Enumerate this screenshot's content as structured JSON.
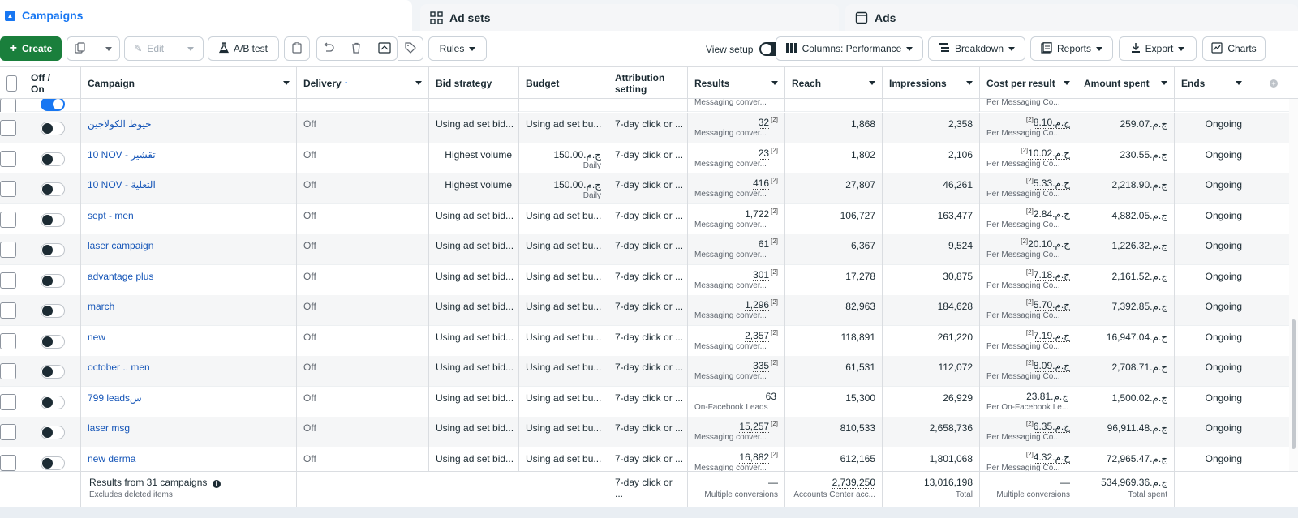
{
  "tabs": {
    "campaigns": "Campaigns",
    "adsets": "Ad sets",
    "ads": "Ads"
  },
  "toolbar": {
    "create": "Create",
    "edit": "Edit",
    "ab_test": "A/B test",
    "rules": "Rules",
    "view_setup": "View setup",
    "columns": "Columns: Performance",
    "breakdown": "Breakdown",
    "reports": "Reports",
    "export": "Export",
    "charts": "Charts"
  },
  "headers": {
    "off_on": "Off / On",
    "campaign": "Campaign",
    "delivery": "Delivery",
    "bid_strategy": "Bid strategy",
    "budget": "Budget",
    "attribution": "Attribution setting",
    "results": "Results",
    "reach": "Reach",
    "impressions": "Impressions",
    "cost_per_result": "Cost per result",
    "amount_spent": "Amount spent",
    "ends": "Ends"
  },
  "partial_row": {
    "results_sub": "Messaging conver...",
    "cpr_sub": "Per Messaging Co..."
  },
  "rows": [
    {
      "name": "خيوط الكولاجين",
      "delivery": "Off",
      "bid": "Using ad set bid...",
      "budget": "Using ad set bu...",
      "budget_sub": "",
      "attribution": "7-day click or ...",
      "results": "32",
      "results_sup": "[2]",
      "results_sub": "Messaging conver...",
      "reach": "1,868",
      "impressions": "2,358",
      "cpr": "ج.م.8.10",
      "cpr_sup": "[2]",
      "cpr_sub": "Per Messaging Co...",
      "spent": "ج.م.259.07",
      "ends": "Ongoing"
    },
    {
      "name": "10 NOV - تقشير",
      "delivery": "Off",
      "bid": "Highest volume",
      "budget": "ج.م.150.00",
      "budget_sub": "Daily",
      "attribution": "7-day click or ...",
      "results": "23",
      "results_sup": "[2]",
      "results_sub": "Messaging conver...",
      "reach": "1,802",
      "impressions": "2,106",
      "cpr": "ج.م.10.02",
      "cpr_sup": "[2]",
      "cpr_sub": "Per Messaging Co...",
      "spent": "ج.م.230.55",
      "ends": "Ongoing"
    },
    {
      "name": "10 NOV - التعلية",
      "delivery": "Off",
      "bid": "Highest volume",
      "budget": "ج.م.150.00",
      "budget_sub": "Daily",
      "attribution": "7-day click or ...",
      "results": "416",
      "results_sup": "[2]",
      "results_sub": "Messaging conver...",
      "reach": "27,807",
      "impressions": "46,261",
      "cpr": "ج.م.5.33",
      "cpr_sup": "[2]",
      "cpr_sub": "Per Messaging Co...",
      "spent": "ج.م.2,218.90",
      "ends": "Ongoing"
    },
    {
      "name": "sept - men",
      "delivery": "Off",
      "bid": "Using ad set bid...",
      "budget": "Using ad set bu...",
      "budget_sub": "",
      "attribution": "7-day click or ...",
      "results": "1,722",
      "results_sup": "[2]",
      "results_sub": "Messaging conver...",
      "reach": "106,727",
      "impressions": "163,477",
      "cpr": "ج.م.2.84",
      "cpr_sup": "[2]",
      "cpr_sub": "Per Messaging Co...",
      "spent": "ج.م.4,882.05",
      "ends": "Ongoing"
    },
    {
      "name": "laser campaign",
      "delivery": "Off",
      "bid": "Using ad set bid...",
      "budget": "Using ad set bu...",
      "budget_sub": "",
      "attribution": "7-day click or ...",
      "results": "61",
      "results_sup": "[2]",
      "results_sub": "Messaging conver...",
      "reach": "6,367",
      "impressions": "9,524",
      "cpr": "ج.م.20.10",
      "cpr_sup": "[2]",
      "cpr_sub": "Per Messaging Co...",
      "spent": "ج.م.1,226.32",
      "ends": "Ongoing"
    },
    {
      "name": "advantage plus",
      "delivery": "Off",
      "bid": "Using ad set bid...",
      "budget": "Using ad set bu...",
      "budget_sub": "",
      "attribution": "7-day click or ...",
      "results": "301",
      "results_sup": "[2]",
      "results_sub": "Messaging conver...",
      "reach": "17,278",
      "impressions": "30,875",
      "cpr": "ج.م.7.18",
      "cpr_sup": "[2]",
      "cpr_sub": "Per Messaging Co...",
      "spent": "ج.م.2,161.52",
      "ends": "Ongoing"
    },
    {
      "name": "march",
      "delivery": "Off",
      "bid": "Using ad set bid...",
      "budget": "Using ad set bu...",
      "budget_sub": "",
      "attribution": "7-day click or ...",
      "results": "1,296",
      "results_sup": "[2]",
      "results_sub": "Messaging conver...",
      "reach": "82,963",
      "impressions": "184,628",
      "cpr": "ج.م.5.70",
      "cpr_sup": "[2]",
      "cpr_sub": "Per Messaging Co...",
      "spent": "ج.م.7,392.85",
      "ends": "Ongoing"
    },
    {
      "name": "new",
      "delivery": "Off",
      "bid": "Using ad set bid...",
      "budget": "Using ad set bu...",
      "budget_sub": "",
      "attribution": "7-day click or ...",
      "results": "2,357",
      "results_sup": "[2]",
      "results_sub": "Messaging conver...",
      "reach": "118,891",
      "impressions": "261,220",
      "cpr": "ج.م.7.19",
      "cpr_sup": "[2]",
      "cpr_sub": "Per Messaging Co...",
      "spent": "ج.م.16,947.04",
      "ends": "Ongoing"
    },
    {
      "name": "october .. men",
      "delivery": "Off",
      "bid": "Using ad set bid...",
      "budget": "Using ad set bu...",
      "budget_sub": "",
      "attribution": "7-day click or ...",
      "results": "335",
      "results_sup": "[2]",
      "results_sub": "Messaging conver...",
      "reach": "61,531",
      "impressions": "112,072",
      "cpr": "ج.م.8.09",
      "cpr_sup": "[2]",
      "cpr_sub": "Per Messaging Co...",
      "spent": "ج.م.2,708.71",
      "ends": "Ongoing"
    },
    {
      "name": "799 leadsس",
      "delivery": "Off",
      "bid": "Using ad set bid...",
      "budget": "Using ad set bu...",
      "budget_sub": "",
      "attribution": "7-day click or ...",
      "results": "63",
      "results_sup": "",
      "results_sub": "On-Facebook Leads",
      "reach": "15,300",
      "impressions": "26,929",
      "cpr": "ج.م.23.81",
      "cpr_sup": "",
      "cpr_sub": "Per On-Facebook Le...",
      "spent": "ج.م.1,500.02",
      "ends": "Ongoing"
    },
    {
      "name": "laser msg",
      "delivery": "Off",
      "bid": "Using ad set bid...",
      "budget": "Using ad set bu...",
      "budget_sub": "",
      "attribution": "7-day click or ...",
      "results": "15,257",
      "results_sup": "[2]",
      "results_sub": "Messaging conver...",
      "reach": "810,533",
      "impressions": "2,658,736",
      "cpr": "ج.م.6.35",
      "cpr_sup": "[2]",
      "cpr_sub": "Per Messaging Co...",
      "spent": "ج.م.96,911.48",
      "ends": "Ongoing"
    },
    {
      "name": "new derma",
      "delivery": "Off",
      "bid": "Using ad set bid...",
      "budget": "Using ad set bu...",
      "budget_sub": "",
      "attribution": "7-day click or ...",
      "results": "16,882",
      "results_sup": "[2]",
      "results_sub": "Messaging conver...",
      "reach": "612,165",
      "impressions": "1,801,068",
      "cpr": "ج.م.4.32",
      "cpr_sup": "[2]",
      "cpr_sub": "Per Messaging Co...",
      "spent": "ج.م.72,965.47",
      "ends": "Ongoing"
    }
  ],
  "footer": {
    "results_from": "Results from 31 campaigns",
    "excludes": "Excludes deleted items",
    "attribution": "7-day click or ...",
    "results": "—",
    "results_sub": "Multiple conversions",
    "reach": "2,739,250",
    "reach_sub": "Accounts Center acc...",
    "impressions": "13,016,198",
    "impressions_sub": "Total",
    "cpr": "—",
    "cpr_sub": "Multiple conversions",
    "spent": "ج.م.534,969.36",
    "spent_sub": "Total spent"
  },
  "colors": {
    "accent": "#1877f2",
    "create_green": "#1a7f3c",
    "link": "#1656b8"
  }
}
